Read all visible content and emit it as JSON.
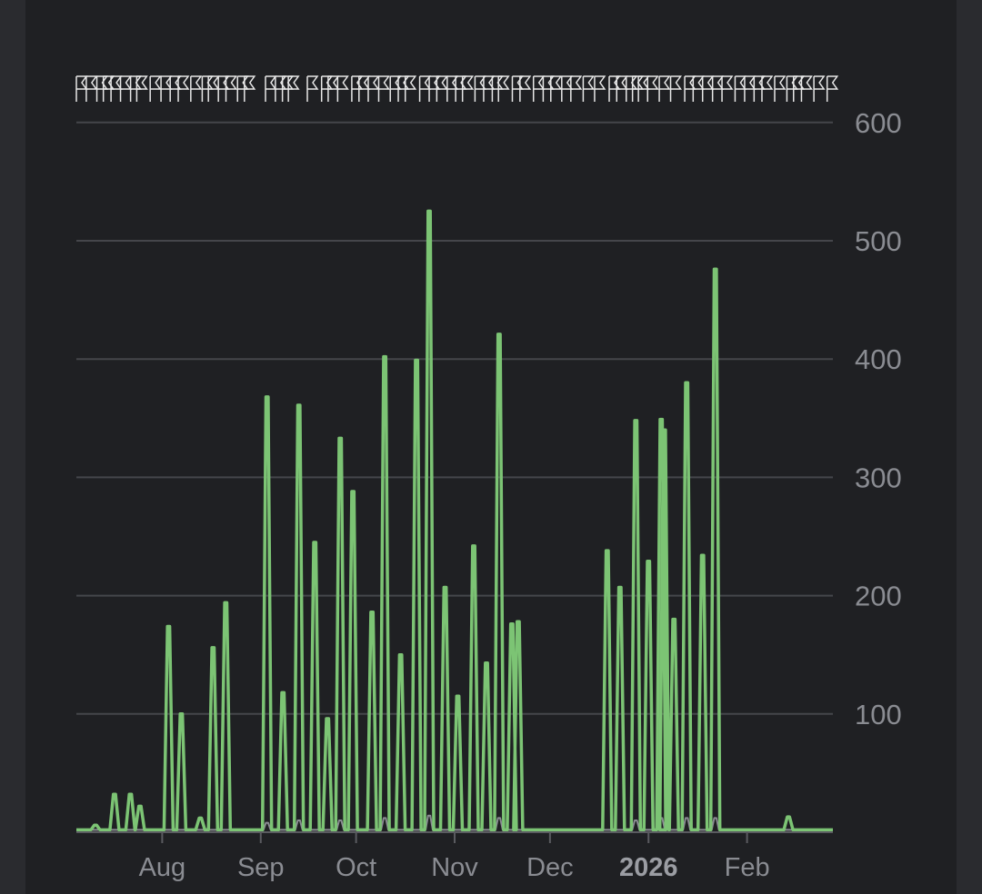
{
  "colors": {
    "background": "#1f2023",
    "outer": "#2a2b2f",
    "grid": "#45464b",
    "axis_text": "#8a8c92",
    "primary_series": "#7cc474",
    "secondary_series": "#8a8c92",
    "markers": "#e8e8e8"
  },
  "chart_data": {
    "type": "line",
    "title": "",
    "xlabel": "",
    "ylabel": "",
    "x_axis": {
      "start": "2025-07-05",
      "end": "2026-02-28",
      "ticks": [
        {
          "date": "2025-08-01",
          "label": "Aug",
          "bold": false
        },
        {
          "date": "2025-09-01",
          "label": "Sep",
          "bold": false
        },
        {
          "date": "2025-10-01",
          "label": "Oct",
          "bold": false
        },
        {
          "date": "2025-11-01",
          "label": "Nov",
          "bold": false
        },
        {
          "date": "2025-12-01",
          "label": "Dec",
          "bold": false
        },
        {
          "date": "2026-01-01",
          "label": "2026",
          "bold": true
        },
        {
          "date": "2026-02-01",
          "label": "Feb",
          "bold": false
        }
      ]
    },
    "y_axis": {
      "min": 0,
      "max": 600,
      "ticks": [
        100,
        200,
        300,
        400,
        500,
        600
      ],
      "position": "right",
      "grid": true
    },
    "baseline": 2,
    "series": [
      {
        "color": "#7cc474",
        "spikes": [
          [
            "2025-07-11",
            6
          ],
          [
            "2025-07-17",
            32
          ],
          [
            "2025-07-22",
            32
          ],
          [
            "2025-07-25",
            22
          ],
          [
            "2025-08-03",
            174
          ],
          [
            "2025-08-07",
            100
          ],
          [
            "2025-08-13",
            12
          ],
          [
            "2025-08-17",
            156
          ],
          [
            "2025-08-21",
            194
          ],
          [
            "2025-09-03",
            368
          ],
          [
            "2025-09-08",
            118
          ],
          [
            "2025-09-13",
            361
          ],
          [
            "2025-09-18",
            245
          ],
          [
            "2025-09-22",
            96
          ],
          [
            "2025-09-26",
            333
          ],
          [
            "2025-09-30",
            288
          ],
          [
            "2025-10-06",
            186
          ],
          [
            "2025-10-10",
            402
          ],
          [
            "2025-10-15",
            150
          ],
          [
            "2025-10-20",
            399
          ],
          [
            "2025-10-24",
            525
          ],
          [
            "2025-10-29",
            207
          ],
          [
            "2025-11-02",
            115
          ],
          [
            "2025-11-07",
            242
          ],
          [
            "2025-11-11",
            143
          ],
          [
            "2025-11-15",
            421
          ],
          [
            "2025-11-19",
            176
          ],
          [
            "2025-11-21",
            178
          ],
          [
            "2025-12-19",
            238
          ],
          [
            "2025-12-23",
            207
          ],
          [
            "2025-12-28",
            348
          ],
          [
            "2026-01-01",
            229
          ],
          [
            "2026-01-05",
            349
          ],
          [
            "2026-01-06",
            340
          ],
          [
            "2026-01-09",
            180
          ],
          [
            "2026-01-13",
            380
          ],
          [
            "2026-01-18",
            234
          ],
          [
            "2026-01-22",
            476
          ],
          [
            "2026-02-14",
            13
          ]
        ]
      },
      {
        "color": "#8a8c92",
        "spikes": [
          [
            "2025-09-03",
            8
          ],
          [
            "2025-09-13",
            10
          ],
          [
            "2025-09-26",
            10
          ],
          [
            "2025-10-10",
            12
          ],
          [
            "2025-10-24",
            14
          ],
          [
            "2025-11-15",
            12
          ],
          [
            "2025-12-28",
            10
          ],
          [
            "2026-01-05",
            12
          ],
          [
            "2026-01-13",
            12
          ],
          [
            "2026-01-22",
            12
          ]
        ]
      }
    ],
    "grid": true,
    "legend": "none"
  }
}
